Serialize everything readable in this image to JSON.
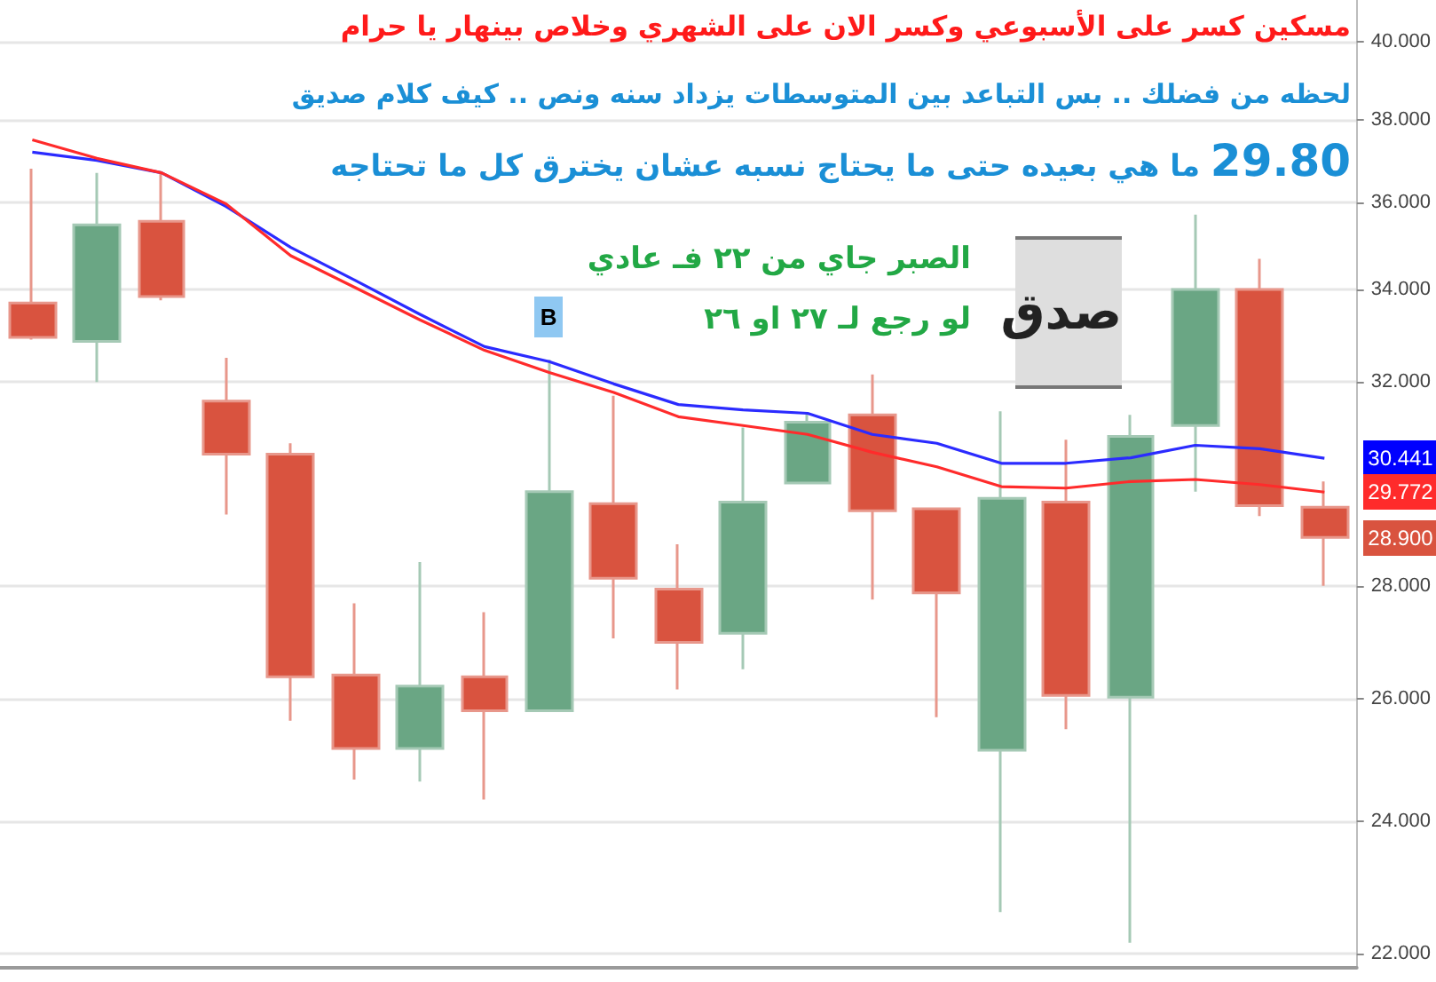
{
  "chart_data": {
    "type": "candlestick",
    "title": "مسكين كسر على الأسبوعي وكسر الان على الشهري وخلاص بينهار يا حرام",
    "subtitle": "لحظه من فضلك .. بس التباعد بين المتوسطات يزداد سنه ونص .. كيف كلام صديق",
    "annotations": [
      "29.80 ما هي بعيده حتى ما يحتاج نسبه عشان يخترق كل ما تحتاجه",
      "الصبر جاي من ٢٢  فـ عادي",
      "لو رجع لـ  ٢٧  او ٢٦",
      "B",
      "صدق",
      "30.441",
      "29.772",
      "28.900"
    ],
    "categories": [
      null,
      null,
      null,
      null,
      null,
      null,
      null,
      null,
      null,
      null,
      null,
      null,
      null,
      null,
      null,
      null,
      null,
      null,
      null,
      null,
      null
    ],
    "ohlc": [
      [
        33.7,
        36.8,
        32.9,
        32.95
      ],
      [
        32.86,
        36.7,
        32.0,
        35.47
      ],
      [
        35.55,
        36.7,
        33.76,
        33.84
      ],
      [
        31.6,
        32.51,
        29.34,
        30.52
      ],
      [
        30.52,
        30.74,
        25.63,
        26.38
      ],
      [
        26.41,
        27.68,
        24.66,
        25.17
      ],
      [
        25.17,
        28.44,
        24.63,
        26.22
      ],
      [
        26.38,
        27.52,
        24.34,
        25.8
      ],
      [
        25.8,
        32.47,
        25.8,
        29.78
      ],
      [
        29.55,
        31.71,
        27.05,
        28.14
      ],
      [
        27.94,
        28.77,
        26.16,
        26.98
      ],
      [
        27.14,
        31.06,
        26.51,
        29.58
      ],
      [
        29.95,
        31.35,
        29.95,
        31.17
      ],
      [
        31.32,
        32.16,
        27.75,
        29.41
      ],
      [
        29.45,
        29.45,
        25.69,
        27.87
      ],
      [
        25.14,
        31.39,
        22.61,
        29.65
      ],
      [
        29.58,
        30.81,
        25.49,
        26.06
      ],
      [
        26.03,
        31.32,
        22.16,
        30.88
      ],
      [
        31.1,
        35.71,
        29.78,
        34.0
      ],
      [
        34.0,
        34.69,
        29.31,
        29.51
      ],
      [
        29.48,
        29.98,
        28.0,
        28.9
      ]
    ],
    "colors": [
      "#d9533f",
      "#6aa684",
      "#d9533f",
      "#d9533f",
      "#d9533f",
      "#d9533f",
      "#6aa684",
      "#d9533f",
      "#6aa684",
      "#d9533f",
      "#d9533f",
      "#6aa684",
      "#6aa684",
      "#d9533f",
      "#d9533f",
      "#6aa684",
      "#d9533f",
      "#6aa684",
      "#6aa684",
      "#d9533f",
      "#d9533f"
    ],
    "series": [
      {
        "type": "line",
        "color": "#2b2bff",
        "values": [
          37.2,
          37.0,
          36.7,
          35.9,
          34.95,
          34.2,
          33.45,
          32.75,
          32.43,
          31.96,
          31.53,
          31.42,
          31.35,
          30.92,
          30.74,
          30.34,
          30.34,
          30.45,
          30.7,
          30.63,
          30.441
        ]
      },
      {
        "type": "line",
        "color": "#ff2b2b",
        "values": [
          37.5,
          37.05,
          36.7,
          35.96,
          34.76,
          34.04,
          33.33,
          32.67,
          32.2,
          31.78,
          31.28,
          31.1,
          30.92,
          30.56,
          30.27,
          29.88,
          29.85,
          29.98,
          30.02,
          29.92,
          29.772
        ]
      }
    ],
    "ylim": [
      21.8,
      41.1
    ],
    "yticks": [
      {
        "value": 22,
        "label": "22.000"
      },
      {
        "value": 24,
        "label": "24.000"
      },
      {
        "value": 26,
        "label": "26.000"
      },
      {
        "value": 28,
        "label": "28.000"
      },
      {
        "value": 32,
        "label": "32.000"
      },
      {
        "value": 34,
        "label": "34.000"
      },
      {
        "value": 36,
        "label": "36.000"
      },
      {
        "value": 38,
        "label": "38.000"
      },
      {
        "value": 40,
        "label": "40.000"
      }
    ],
    "log": true,
    "grid": "y",
    "marker": "none",
    "tick_labels": "y"
  }
}
